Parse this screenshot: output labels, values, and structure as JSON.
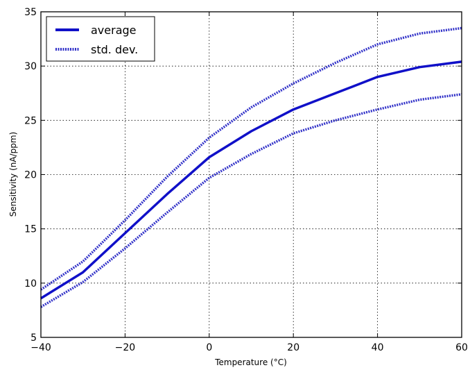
{
  "chart_data": {
    "type": "line",
    "xlabel": "Temperature (°C)",
    "ylabel": "Sensitivity (nA/ppm)",
    "xlim": [
      -40,
      60
    ],
    "ylim": [
      5,
      35
    ],
    "xticks": [
      -40,
      -20,
      0,
      20,
      40,
      60
    ],
    "xtick_labels": [
      "−40",
      "−20",
      "0",
      "20",
      "40",
      "60"
    ],
    "yticks": [
      5,
      10,
      15,
      20,
      25,
      30,
      35
    ],
    "ytick_labels": [
      "5",
      "10",
      "15",
      "20",
      "25",
      "30",
      "35"
    ],
    "grid": true,
    "legend_position": "top-left",
    "series": [
      {
        "name": "average",
        "style": "solid",
        "color": "#1010c8",
        "x": [
          -40,
          -30,
          -20,
          -10,
          0,
          10,
          20,
          30,
          40,
          50,
          60
        ],
        "y": [
          8.6,
          11.0,
          14.6,
          18.2,
          21.6,
          24.0,
          26.0,
          27.5,
          29.0,
          29.9,
          30.4
        ]
      },
      {
        "name": "std. dev.",
        "style": "dotted",
        "color": "#3232c8",
        "x": [
          -40,
          -30,
          -20,
          -10,
          0,
          10,
          20,
          30,
          40,
          50,
          60
        ],
        "y": [
          9.4,
          12.0,
          15.8,
          19.8,
          23.4,
          26.2,
          28.4,
          30.3,
          32.0,
          33.0,
          33.5
        ]
      },
      {
        "name": "",
        "style": "dotted",
        "color": "#3232c8",
        "x": [
          -40,
          -30,
          -20,
          -10,
          0,
          10,
          20,
          30,
          40,
          50,
          60
        ],
        "y": [
          7.8,
          10.1,
          13.2,
          16.5,
          19.7,
          21.9,
          23.8,
          25.0,
          26.0,
          26.9,
          27.4
        ]
      }
    ]
  }
}
